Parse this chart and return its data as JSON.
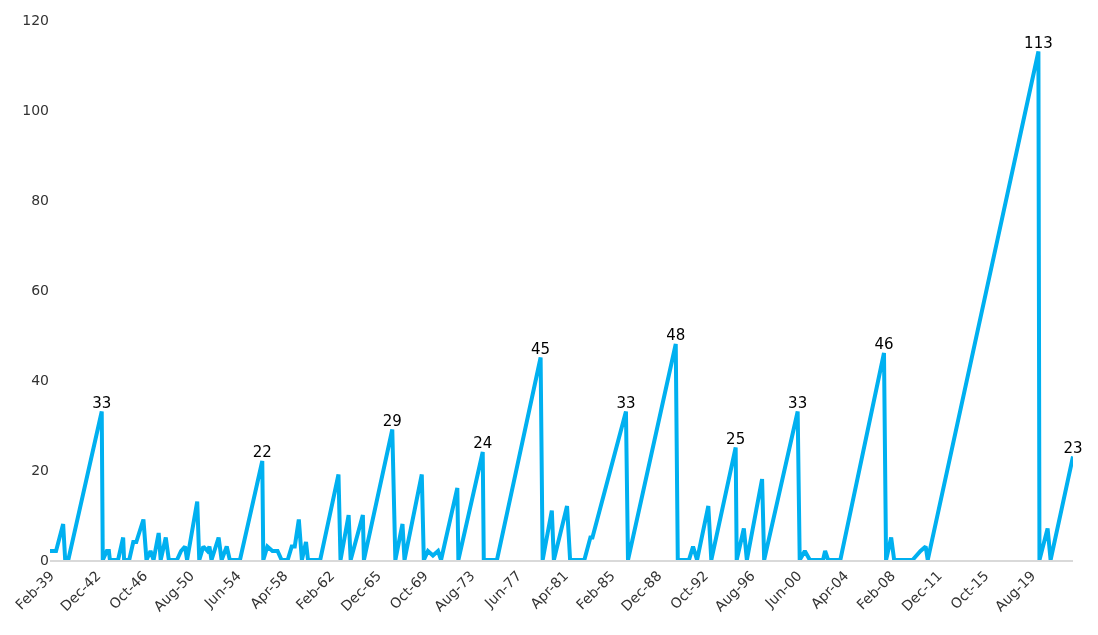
{
  "chart_data": {
    "type": "line",
    "color": "#00b0f0",
    "x": [
      "1939-02",
      "1939-08",
      "1940-03",
      "1940-05",
      "1940-08",
      "1943-05",
      "1943-06",
      "1943-10",
      "1943-12",
      "1944-01",
      "1944-09",
      "1945-02",
      "1945-03",
      "1945-08",
      "1945-12",
      "1946-03",
      "1946-10",
      "1947-01",
      "1947-05",
      "1947-08",
      "1948-01",
      "1948-03",
      "1948-08",
      "1948-11",
      "1949-07",
      "1949-11",
      "1950-03",
      "1950-05",
      "1951-03",
      "1951-05",
      "1951-09",
      "1952-01",
      "1952-03",
      "1952-05",
      "1952-12",
      "1953-03",
      "1953-08",
      "1953-11",
      "1954-09",
      "1956-07",
      "1956-08",
      "1956-12",
      "1957-05",
      "1957-10",
      "1958-02",
      "1958-08",
      "1958-12",
      "1959-03",
      "1959-07",
      "1959-10",
      "1960-02",
      "1960-04",
      "1961-04",
      "1962-10",
      "1962-12",
      "1963-08",
      "1963-10",
      "1964-10",
      "1964-11",
      "1967-03",
      "1967-06",
      "1968-01",
      "1968-03",
      "1969-08",
      "1969-10",
      "1970-02",
      "1970-07",
      "1970-12",
      "1971-03",
      "1972-07",
      "1972-08",
      "1974-08",
      "1974-09",
      "1975-10",
      "1979-05",
      "1979-07",
      "1980-04",
      "1980-06",
      "1981-07",
      "1981-10",
      "1982-12",
      "1983-06",
      "1983-08",
      "1986-05",
      "1986-07",
      "1990-06",
      "1990-08",
      "1991-07",
      "1991-11",
      "1992-03",
      "1993-02",
      "1993-05",
      "1995-05",
      "1995-06",
      "1996-01",
      "1996-04",
      "1997-07",
      "1997-09",
      "2000-06",
      "2000-08",
      "2001-01",
      "2001-06",
      "2002-07",
      "2002-09",
      "2002-12",
      "2003-12",
      "2007-07",
      "2007-09",
      "2008-02",
      "2008-05",
      "2009-11",
      "2010-07",
      "2010-12",
      "2011-02",
      "2020-03",
      "2020-04",
      "2020-12",
      "2021-03",
      "2023-01"
    ],
    "values": [
      2,
      2,
      8,
      0,
      0,
      33,
      0,
      2,
      2,
      0,
      0,
      5,
      0,
      0,
      4,
      4,
      9,
      0,
      2,
      0,
      6,
      0,
      5,
      0,
      0,
      2,
      3,
      0,
      13,
      0,
      3,
      2,
      3,
      0,
      5,
      0,
      3,
      0,
      0,
      22,
      0,
      3,
      2,
      2,
      0,
      0,
      3,
      3,
      9,
      0,
      4,
      0,
      0,
      19,
      0,
      10,
      0,
      10,
      0,
      29,
      0,
      8,
      0,
      19,
      0,
      2,
      1,
      2,
      0,
      16,
      0,
      24,
      0,
      0,
      45,
      0,
      11,
      0,
      12,
      0,
      0,
      5,
      5,
      33,
      0,
      48,
      0,
      0,
      3,
      0,
      12,
      0,
      25,
      0,
      7,
      0,
      18,
      0,
      33,
      0,
      2,
      0,
      0,
      2,
      0,
      0,
      46,
      0,
      5,
      0,
      0,
      2,
      3,
      0,
      113,
      0,
      7,
      0,
      23
    ],
    "value_labels": [
      null,
      null,
      null,
      null,
      null,
      "33",
      null,
      null,
      null,
      null,
      null,
      null,
      null,
      null,
      null,
      null,
      null,
      null,
      null,
      null,
      null,
      null,
      null,
      null,
      null,
      null,
      null,
      null,
      null,
      null,
      null,
      null,
      null,
      null,
      null,
      null,
      null,
      null,
      null,
      "22",
      null,
      null,
      null,
      null,
      null,
      null,
      null,
      null,
      null,
      null,
      null,
      null,
      null,
      null,
      null,
      null,
      null,
      null,
      null,
      "29",
      null,
      null,
      null,
      null,
      null,
      null,
      null,
      null,
      null,
      null,
      null,
      "24",
      null,
      null,
      "45",
      null,
      null,
      null,
      null,
      null,
      null,
      null,
      null,
      "33",
      null,
      "48",
      null,
      null,
      null,
      null,
      null,
      null,
      "25",
      null,
      null,
      null,
      null,
      null,
      "33",
      null,
      null,
      null,
      null,
      null,
      null,
      null,
      "46",
      null,
      null,
      null,
      null,
      null,
      null,
      null,
      "113",
      null,
      null,
      null,
      "23"
    ],
    "xlim": [
      "1939-02",
      "2023-01"
    ],
    "xticks": [
      {
        "value": "1939-02",
        "label": "Feb-39"
      },
      {
        "value": "1942-12",
        "label": "Dec-42"
      },
      {
        "value": "1946-10",
        "label": "Oct-46"
      },
      {
        "value": "1950-08",
        "label": "Aug-50"
      },
      {
        "value": "1954-06",
        "label": "Jun-54"
      },
      {
        "value": "1958-04",
        "label": "Apr-58"
      },
      {
        "value": "1962-02",
        "label": "Feb-62"
      },
      {
        "value": "1965-12",
        "label": "Dec-65"
      },
      {
        "value": "1969-10",
        "label": "Oct-69"
      },
      {
        "value": "1973-08",
        "label": "Aug-73"
      },
      {
        "value": "1977-06",
        "label": "Jun-77"
      },
      {
        "value": "1981-04",
        "label": "Apr-81"
      },
      {
        "value": "1985-02",
        "label": "Feb-85"
      },
      {
        "value": "1988-12",
        "label": "Dec-88"
      },
      {
        "value": "1992-10",
        "label": "Oct-92"
      },
      {
        "value": "1996-08",
        "label": "Aug-96"
      },
      {
        "value": "2000-06",
        "label": "Jun-00"
      },
      {
        "value": "2004-04",
        "label": "Apr-04"
      },
      {
        "value": "2008-02",
        "label": "Feb-08"
      },
      {
        "value": "2011-12",
        "label": "Dec-11"
      },
      {
        "value": "2015-10",
        "label": "Oct-15"
      },
      {
        "value": "2019-08",
        "label": "Aug-19"
      }
    ],
    "ylim": [
      0,
      120
    ],
    "yticks": [
      0,
      20,
      40,
      60,
      80,
      100,
      120
    ]
  }
}
